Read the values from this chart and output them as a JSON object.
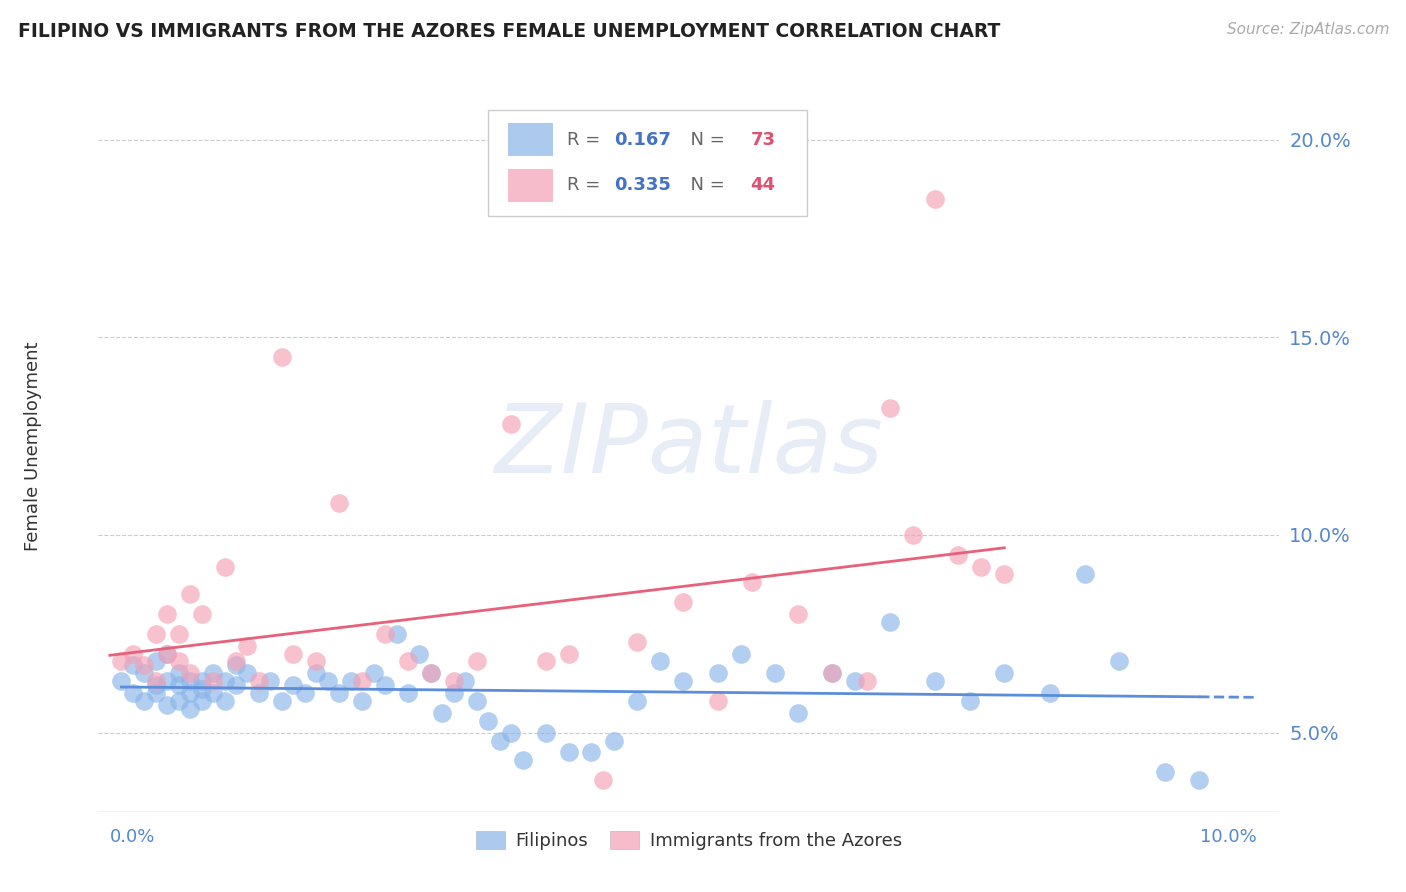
{
  "title": "FILIPINO VS IMMIGRANTS FROM THE AZORES FEMALE UNEMPLOYMENT CORRELATION CHART",
  "source": "Source: ZipAtlas.com",
  "ylabel": "Female Unemployment",
  "filipino_color": "#89b4e8",
  "azores_color": "#f4a0b5",
  "filipino_line_color": "#5b8dd9",
  "azores_line_color": "#e8607a",
  "filipino_R": 0.167,
  "filipino_N": 73,
  "azores_R": 0.335,
  "azores_N": 44,
  "xlim": [
    0.0,
    0.1
  ],
  "ylim": [
    0.03,
    0.215
  ],
  "yticks": [
    0.05,
    0.1,
    0.15,
    0.2
  ],
  "ytick_labels": [
    "5.0%",
    "10.0%",
    "15.0%",
    "20.0%"
  ],
  "watermark_text": "ZIPatlas",
  "filipino_scatter_x": [
    0.001,
    0.002,
    0.002,
    0.003,
    0.003,
    0.004,
    0.004,
    0.004,
    0.005,
    0.005,
    0.005,
    0.006,
    0.006,
    0.006,
    0.007,
    0.007,
    0.007,
    0.008,
    0.008,
    0.008,
    0.009,
    0.009,
    0.01,
    0.01,
    0.011,
    0.011,
    0.012,
    0.013,
    0.014,
    0.015,
    0.016,
    0.017,
    0.018,
    0.019,
    0.02,
    0.021,
    0.022,
    0.023,
    0.024,
    0.025,
    0.026,
    0.027,
    0.028,
    0.029,
    0.03,
    0.031,
    0.032,
    0.033,
    0.034,
    0.035,
    0.036,
    0.038,
    0.04,
    0.042,
    0.044,
    0.046,
    0.048,
    0.05,
    0.053,
    0.055,
    0.058,
    0.06,
    0.063,
    0.065,
    0.068,
    0.072,
    0.075,
    0.078,
    0.082,
    0.085,
    0.088,
    0.092,
    0.095
  ],
  "filipino_scatter_y": [
    0.063,
    0.067,
    0.06,
    0.065,
    0.058,
    0.062,
    0.06,
    0.068,
    0.063,
    0.057,
    0.07,
    0.062,
    0.058,
    0.065,
    0.063,
    0.06,
    0.056,
    0.063,
    0.061,
    0.058,
    0.06,
    0.065,
    0.063,
    0.058,
    0.062,
    0.067,
    0.065,
    0.06,
    0.063,
    0.058,
    0.062,
    0.06,
    0.065,
    0.063,
    0.06,
    0.063,
    0.058,
    0.065,
    0.062,
    0.075,
    0.06,
    0.07,
    0.065,
    0.055,
    0.06,
    0.063,
    0.058,
    0.053,
    0.048,
    0.05,
    0.043,
    0.05,
    0.045,
    0.045,
    0.048,
    0.058,
    0.068,
    0.063,
    0.065,
    0.07,
    0.065,
    0.055,
    0.065,
    0.063,
    0.078,
    0.063,
    0.058,
    0.065,
    0.06,
    0.09,
    0.068,
    0.04,
    0.038
  ],
  "azores_scatter_x": [
    0.001,
    0.002,
    0.003,
    0.004,
    0.004,
    0.005,
    0.005,
    0.006,
    0.006,
    0.007,
    0.007,
    0.008,
    0.009,
    0.01,
    0.011,
    0.012,
    0.013,
    0.015,
    0.016,
    0.018,
    0.02,
    0.022,
    0.024,
    0.026,
    0.028,
    0.03,
    0.032,
    0.035,
    0.038,
    0.04,
    0.043,
    0.046,
    0.05,
    0.053,
    0.056,
    0.06,
    0.063,
    0.066,
    0.068,
    0.07,
    0.072,
    0.074,
    0.076,
    0.078
  ],
  "azores_scatter_y": [
    0.068,
    0.07,
    0.067,
    0.063,
    0.075,
    0.07,
    0.08,
    0.068,
    0.075,
    0.065,
    0.085,
    0.08,
    0.063,
    0.092,
    0.068,
    0.072,
    0.063,
    0.145,
    0.07,
    0.068,
    0.108,
    0.063,
    0.075,
    0.068,
    0.065,
    0.063,
    0.068,
    0.128,
    0.068,
    0.07,
    0.038,
    0.073,
    0.083,
    0.058,
    0.088,
    0.08,
    0.065,
    0.063,
    0.132,
    0.1,
    0.185,
    0.095,
    0.092,
    0.09
  ]
}
